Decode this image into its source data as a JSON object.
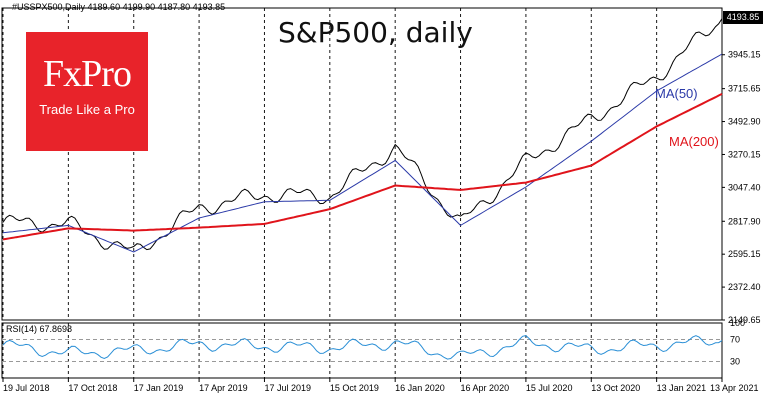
{
  "header": {
    "symbol_info": "#USSPX500,Daily  4189.60  4199.90  4187.80  4193.85",
    "rsi_info": "RSI(14) 67.8698",
    "title": "S&P500, daily"
  },
  "branding": {
    "name": "FxPro",
    "tagline": "Trade Like a Pro",
    "color": "#e8232a"
  },
  "colors": {
    "price": "#000000",
    "ma50": "#2b3aa8",
    "ma200": "#e0141b",
    "rsi": "#2a8fd6",
    "grid": "#000000"
  },
  "labels": {
    "ma50": "MA(50)",
    "ma200": "MA(200)",
    "last_price": "4193.85"
  },
  "chart_data": [
    {
      "type": "line",
      "title": "S&P500, daily",
      "x_ticks": [
        "19 Jul 2018",
        "17 Oct 2018",
        "17 Jan 2019",
        "17 Apr 2019",
        "17 Jul 2019",
        "15 Oct 2019",
        "16 Jan 2020",
        "16 Apr 2020",
        "15 Jul 2020",
        "13 Oct 2020",
        "13 Jan 2021",
        "13 Apr 2021"
      ],
      "y_ticks": [
        2149.65,
        2372.4,
        2595.15,
        2817.9,
        3047.4,
        3270.15,
        3492.9,
        3715.65,
        3945.15,
        4193.85
      ],
      "ylim": [
        2149.65,
        4193.85
      ],
      "grid": true,
      "series": [
        {
          "name": "MA(50)",
          "x": [
            "19 Jul 2018",
            "17 Oct 2018",
            "17 Jan 2019",
            "17 Apr 2019",
            "17 Jul 2019",
            "15 Oct 2019",
            "16 Jan 2020",
            "16 Apr 2020",
            "15 Jul 2020",
            "13 Oct 2020",
            "13 Jan 2021",
            "13 Apr 2021"
          ],
          "values": [
            2740,
            2790,
            2610,
            2840,
            2950,
            2960,
            3230,
            2790,
            3050,
            3360,
            3700,
            3950
          ]
        },
        {
          "name": "MA(200)",
          "x": [
            "19 Jul 2018",
            "17 Oct 2018",
            "17 Jan 2019",
            "17 Apr 2019",
            "17 Jul 2019",
            "15 Oct 2019",
            "16 Jan 2020",
            "16 Apr 2020",
            "15 Jul 2020",
            "13 Oct 2020",
            "13 Jan 2021",
            "13 Apr 2021"
          ],
          "values": [
            2695,
            2770,
            2755,
            2775,
            2800,
            2900,
            3060,
            3030,
            3080,
            3195,
            3460,
            3680
          ]
        },
        {
          "name": "",
          "x": [
            "19 Jul 2018",
            "17 Oct 2018",
            "17 Jan 2019",
            "17 Apr 2019",
            "17 Jul 2019",
            "15 Oct 2019",
            "16 Jan 2020",
            "16 Apr 2020",
            "15 Jul 2020",
            "13 Oct 2020",
            "13 Jan 2021",
            "13 Apr 2021"
          ],
          "values": [
            2810,
            2800,
            2600,
            2910,
            3000,
            2990,
            3320,
            2800,
            3220,
            3510,
            3800,
            4190
          ]
        }
      ]
    },
    {
      "type": "line",
      "title": "RSI(14) 67.8698",
      "y_ticks": [
        0,
        30,
        70,
        100
      ],
      "ylim": [
        0,
        100
      ],
      "series": [
        {
          "name": "",
          "x": [
            "19 Jul 2018",
            "17 Oct 2018",
            "17 Jan 2019",
            "17 Apr 2019",
            "17 Jul 2019",
            "15 Oct 2019",
            "16 Jan 2020",
            "16 Apr 2020",
            "15 Jul 2020",
            "13 Oct 2020",
            "13 Jan 2021",
            "13 Apr 2021"
          ],
          "values": [
            60,
            45,
            50,
            62,
            58,
            55,
            64,
            38,
            65,
            52,
            60,
            68
          ]
        }
      ]
    }
  ]
}
